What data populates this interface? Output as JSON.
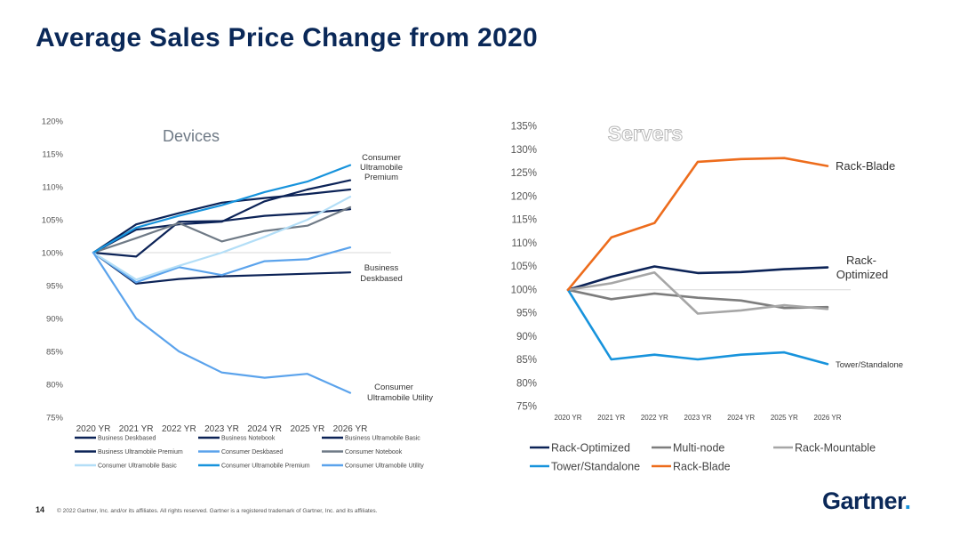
{
  "page": {
    "title": "Average Sales Price Change from 2020",
    "page_number": "14",
    "copyright": "© 2022 Gartner, Inc. and/or its affiliates. All rights reserved. Gartner is a registered trademark of Gartner, Inc. and its affiliates.",
    "logo_text": "Gartner",
    "logo_mark": "."
  },
  "chart_data": [
    {
      "type": "line",
      "title": "Devices",
      "x": [
        "2020 YR",
        "2021 YR",
        "2022 YR",
        "2023 YR",
        "2024 YR",
        "2025 YR",
        "2026 YR"
      ],
      "ylim": [
        75,
        120
      ],
      "ytick_step": 5,
      "y_unit": "%",
      "grid": false,
      "baseline": 100,
      "legend_position": "bottom",
      "series": [
        {
          "name": "Business Deskbased",
          "color": "#0c2357",
          "values": [
            100,
            95.3,
            96.0,
            96.4,
            96.6,
            96.8,
            97.0
          ]
        },
        {
          "name": "Business Notebook",
          "color": "#0c2357",
          "values": [
            100,
            99.4,
            104.7,
            104.8,
            105.6,
            106.0,
            106.6
          ]
        },
        {
          "name": "Business Ultramobile Basic",
          "color": "#0c2357",
          "values": [
            100,
            104.3,
            106.0,
            107.6,
            108.3,
            108.9,
            109.6
          ]
        },
        {
          "name": "Business Ultramobile Premium",
          "color": "#0c2357",
          "values": [
            100,
            103.5,
            104.3,
            104.7,
            107.8,
            109.6,
            111.0
          ]
        },
        {
          "name": "Consumer Deskbased",
          "color": "#5ba3ec",
          "values": [
            100,
            95.5,
            97.8,
            96.6,
            98.7,
            99.0,
            100.8
          ]
        },
        {
          "name": "Consumer Notebook",
          "color": "#6f7a86",
          "values": [
            100,
            102.2,
            104.5,
            101.7,
            103.3,
            104.1,
            106.9
          ]
        },
        {
          "name": "Consumer Ultramobile Basic",
          "color": "#b3def7",
          "values": [
            100,
            95.9,
            98.0,
            100.0,
            102.4,
            105.0,
            108.5
          ]
        },
        {
          "name": "Consumer Ultramobile Premium",
          "color": "#1793dc",
          "values": [
            100,
            103.8,
            105.6,
            107.2,
            109.2,
            110.8,
            113.3
          ]
        },
        {
          "name": "Consumer Ultramobile Utility",
          "color": "#5ba3ec",
          "values": [
            100,
            90.0,
            85.0,
            81.8,
            81.0,
            81.6,
            78.7
          ]
        }
      ],
      "annotations": [
        {
          "text": "Consumer Ultramobile Premium"
        },
        {
          "text": "Business Deskbased"
        },
        {
          "text": "Consumer Ultramobile Utility"
        }
      ]
    },
    {
      "type": "line",
      "title": "Servers",
      "x": [
        "2020 YR",
        "2021 YR",
        "2022 YR",
        "2023 YR",
        "2024 YR",
        "2025 YR",
        "2026 YR"
      ],
      "ylim": [
        75,
        135
      ],
      "ytick_step": 5,
      "y_unit": "%",
      "grid": false,
      "baseline": 100,
      "legend_position": "bottom",
      "series": [
        {
          "name": "Rack-Optimized",
          "color": "#0c2357",
          "values": [
            100,
            102.8,
            105.0,
            103.6,
            103.8,
            104.4,
            104.8
          ]
        },
        {
          "name": "Multi-node",
          "color": "#7d7d7d",
          "values": [
            100,
            98.0,
            99.2,
            98.3,
            97.7,
            96.1,
            96.3
          ]
        },
        {
          "name": "Rack-Mountable",
          "color": "#a6a6a6",
          "values": [
            100,
            101.4,
            103.7,
            94.9,
            95.6,
            96.7,
            95.9
          ]
        },
        {
          "name": "Tower/Standalone",
          "color": "#1793dc",
          "values": [
            100,
            85.1,
            86.1,
            85.1,
            86.1,
            86.6,
            84.1
          ]
        },
        {
          "name": "Rack-Blade",
          "color": "#ed6c1c",
          "values": [
            100,
            111.2,
            114.3,
            127.4,
            128.0,
            128.2,
            126.5
          ]
        }
      ],
      "annotations": [
        {
          "text": "Rack-Blade"
        },
        {
          "text": "Rack-Optimized"
        },
        {
          "text": "Tower/Standalone"
        }
      ]
    }
  ]
}
